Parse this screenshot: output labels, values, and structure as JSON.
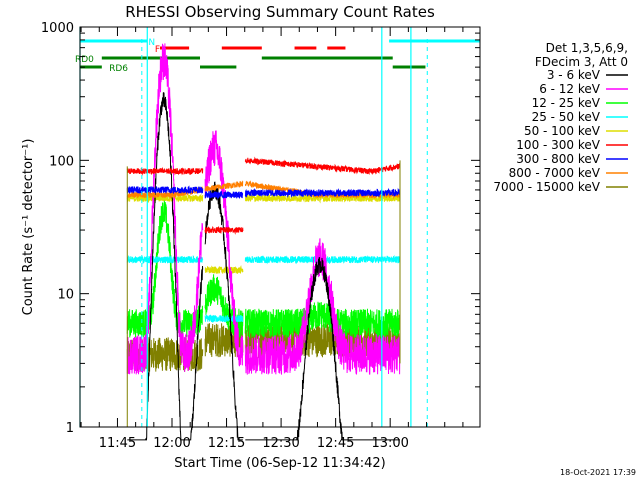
{
  "chart_data": {
    "type": "line",
    "title": "RHESSI Observing Summary Count Rates",
    "xlabel": "Start Time (06-Sep-12 11:34:42)",
    "ylabel": "Count Rate (s⁻¹ detector⁻¹)",
    "yscale": "log",
    "ylim": [
      1,
      1000
    ],
    "xlim_min": [
      0,
      110
    ],
    "y_ticks": [
      {
        "v": 1,
        "label": "1"
      },
      {
        "v": 10,
        "label": "10"
      },
      {
        "v": 100,
        "label": "100"
      },
      {
        "v": 1000,
        "label": "1000"
      }
    ],
    "x_ticks": [
      {
        "t": 10.3,
        "label": "11:45"
      },
      {
        "t": 25.3,
        "label": "12:00"
      },
      {
        "t": 40.3,
        "label": "12:15"
      },
      {
        "t": 55.3,
        "label": "12:30"
      },
      {
        "t": 70.3,
        "label": "12:45"
      },
      {
        "t": 85.3,
        "label": "13:00"
      }
    ],
    "legend": {
      "placement": "right",
      "header": [
        "Det 1,3,5,6,9,",
        "FDecim 3, Att 0"
      ]
    },
    "series": [
      {
        "name": "3 - 6 keV",
        "color": "#000000"
      },
      {
        "name": "6 - 12 keV",
        "color": "#ff00ff"
      },
      {
        "name": "12 - 25 keV",
        "color": "#00ff00"
      },
      {
        "name": "25 - 50 keV",
        "color": "#00ffff"
      },
      {
        "name": "50 - 100 keV",
        "color": "#dddd00"
      },
      {
        "name": "100 - 300 keV",
        "color": "#ff0000"
      },
      {
        "name": "300 - 800 keV",
        "color": "#0000ff"
      },
      {
        "name": "800 - 7000 keV",
        "color": "#ff8000"
      },
      {
        "name": "7000 - 15000 keV",
        "color": "#808000"
      }
    ],
    "flags": [
      {
        "label": "N",
        "color": "#00ffff",
        "segments": [
          [
            0,
            18.5
          ],
          [
            85,
            110
          ]
        ]
      },
      {
        "label": "F",
        "color": "#ff0000",
        "segments": [
          [
            22,
            30
          ],
          [
            39,
            50
          ],
          [
            59,
            65
          ],
          [
            68,
            73
          ]
        ]
      },
      {
        "label": "RD0",
        "color": "#008000",
        "segments": [
          [
            6,
            33
          ],
          [
            50,
            86
          ]
        ]
      },
      {
        "label": "RD6",
        "color": "#008000",
        "segments": [
          [
            0,
            6
          ],
          [
            33,
            43
          ],
          [
            86,
            95
          ]
        ]
      }
    ],
    "cyan_vlines_solid": [
      0,
      18.5,
      83,
      91
    ],
    "cyan_vlines_dashed": [
      17,
      95.5
    ],
    "data_window": [
      13,
      88
    ],
    "gaps": [
      [
        33.8,
        34.4
      ],
      [
        44.8,
        45.4
      ]
    ]
  },
  "footer": {
    "date": "18-Oct-2021 17:39"
  }
}
